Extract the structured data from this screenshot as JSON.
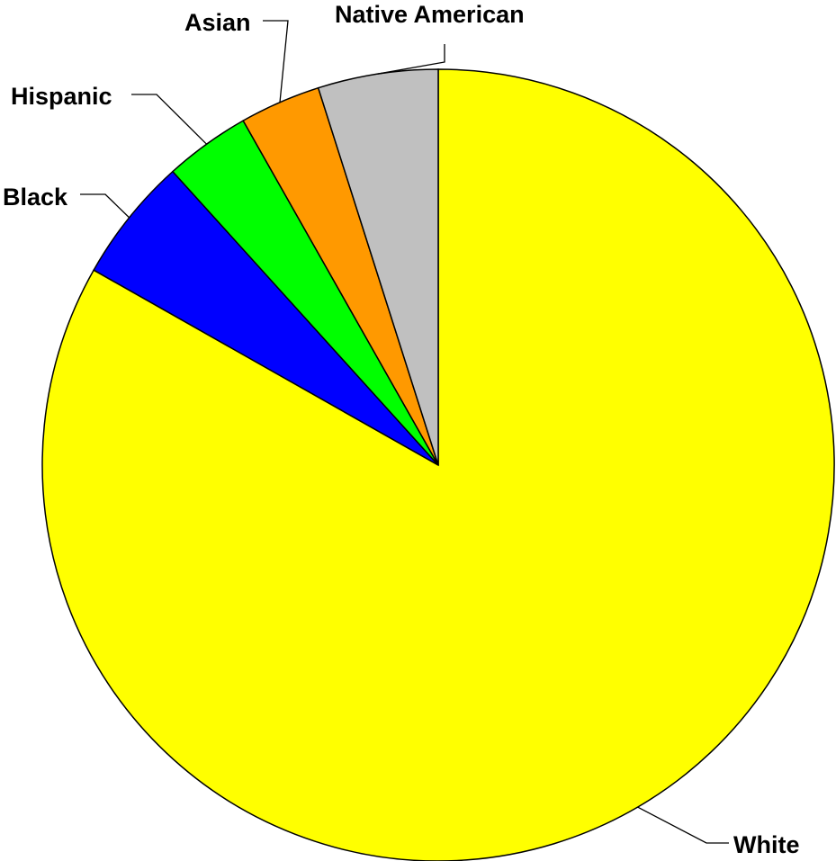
{
  "chart_data": {
    "type": "pie",
    "slices": [
      {
        "label": "White",
        "value": 83.2,
        "color": "#FFFF00"
      },
      {
        "label": "Black",
        "value": 5.1,
        "color": "#0000FF"
      },
      {
        "label": "Hispanic",
        "value": 3.5,
        "color": "#00FF00"
      },
      {
        "label": "Asian",
        "value": 3.3,
        "color": "#FF9900"
      },
      {
        "label": "Native American",
        "value": 4.9,
        "color": "#C0C0C0"
      }
    ],
    "start_angle": "12 o'clock",
    "direction": "clockwise",
    "title": "",
    "legend": "none",
    "labels": "outside with leader lines"
  }
}
